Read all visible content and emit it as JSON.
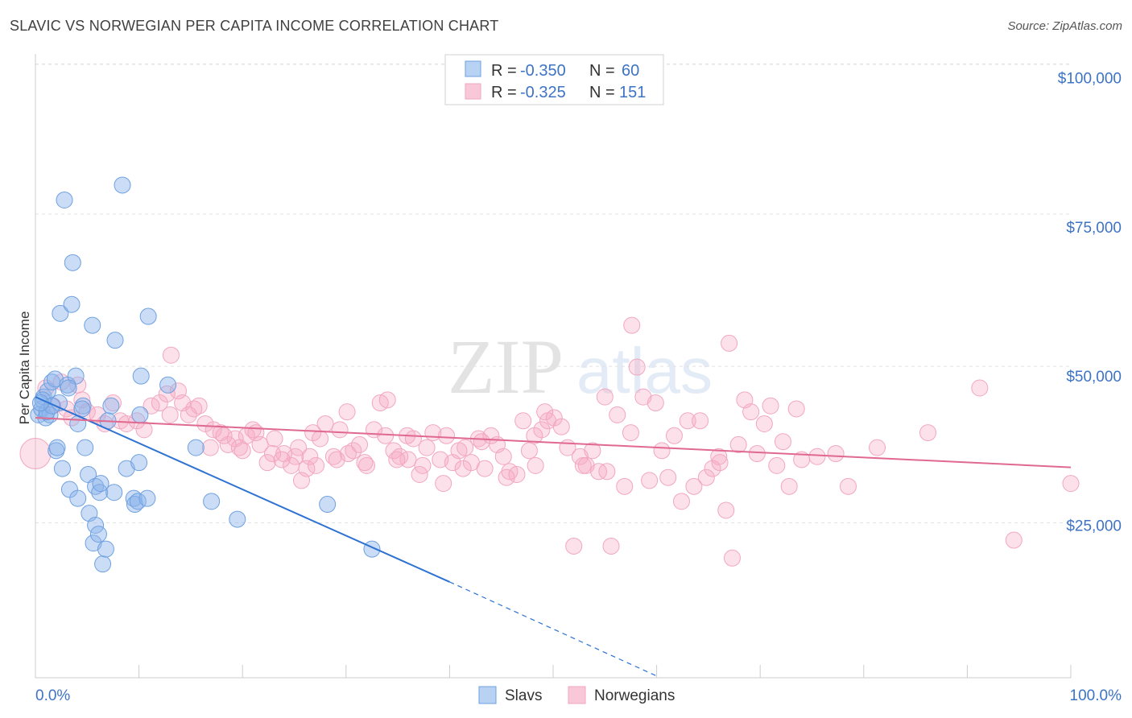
{
  "title": "SLAVIC VS NORWEGIAN PER CAPITA INCOME CORRELATION CHART",
  "source": "Source: ZipAtlas.com",
  "watermark": {
    "zip": "ZIP",
    "atlas": "atlas"
  },
  "chart_data": {
    "type": "scatter",
    "xlabel": "",
    "ylabel": "Per Capita Income",
    "xlim": [
      0,
      100
    ],
    "ylim": [
      0,
      105000
    ],
    "x_tick_labels": [
      "0.0%",
      "100.0%"
    ],
    "y_ticks": [
      25000,
      50000,
      75000,
      100000
    ],
    "y_tick_labels": [
      "$25,000",
      "$50,000",
      "$75,000",
      "$100,000"
    ],
    "grid": true,
    "legend_position": "top-center",
    "stats": [
      {
        "r_label": "R =",
        "r_value": "-0.350",
        "n_label": "N =",
        "n_value": "60"
      },
      {
        "r_label": "R =",
        "r_value": "-0.325",
        "n_label": "N =",
        "n_value": "151"
      }
    ],
    "series": [
      {
        "name": "Slavs",
        "color": "#6ea0e0",
        "line_color": "#2d72d2",
        "trend": {
          "x0": 0,
          "y0": 46500,
          "x1": 40,
          "y1": 15500,
          "x_dash_end": 60,
          "y_dash_end": 0
        },
        "points": [
          [
            0.3,
            43500
          ],
          [
            0.6,
            44500
          ],
          [
            0.8,
            46500
          ],
          [
            1,
            43000
          ],
          [
            1.2,
            47500
          ],
          [
            1.4,
            43500
          ],
          [
            1.6,
            49000
          ],
          [
            1.9,
            49500
          ],
          [
            2,
            37500
          ],
          [
            2.1,
            38000
          ],
          [
            2.4,
            60500
          ],
          [
            2.6,
            34500
          ],
          [
            2.8,
            79500
          ],
          [
            3.1,
            48500
          ],
          [
            3.3,
            31000
          ],
          [
            3.6,
            69000
          ],
          [
            3.5,
            62000
          ],
          [
            3.9,
            50000
          ],
          [
            4.1,
            42000
          ],
          [
            4.1,
            29500
          ],
          [
            4.6,
            45000
          ],
          [
            4.8,
            38000
          ],
          [
            5.1,
            33500
          ],
          [
            5.2,
            27000
          ],
          [
            5.5,
            58500
          ],
          [
            5.6,
            22000
          ],
          [
            5.8,
            31500
          ],
          [
            5.8,
            25000
          ],
          [
            6.1,
            23500
          ],
          [
            6.2,
            30500
          ],
          [
            6.3,
            32000
          ],
          [
            6.5,
            18500
          ],
          [
            6.8,
            21000
          ],
          [
            7,
            42500
          ],
          [
            7.3,
            45000
          ],
          [
            7.6,
            30500
          ],
          [
            7.7,
            56000
          ],
          [
            8.4,
            82000
          ],
          [
            8.8,
            34500
          ],
          [
            9.5,
            29500
          ],
          [
            9.6,
            28500
          ],
          [
            9.9,
            29000
          ],
          [
            10,
            35500
          ],
          [
            10.1,
            43500
          ],
          [
            10.2,
            50000
          ],
          [
            10.8,
            29500
          ],
          [
            10.9,
            60000
          ],
          [
            12.8,
            48500
          ],
          [
            15.5,
            38000
          ],
          [
            17,
            29000
          ],
          [
            19.5,
            26000
          ],
          [
            28.2,
            28500
          ],
          [
            32.5,
            21000
          ],
          [
            0.7,
            46000
          ],
          [
            1.1,
            44000
          ],
          [
            2.3,
            45500
          ],
          [
            3.2,
            48000
          ],
          [
            4.5,
            44500
          ],
          [
            1.6,
            45000
          ],
          [
            0.5,
            45500
          ]
        ]
      },
      {
        "name": "Norwegians",
        "color": "#f2a6c0",
        "line_color": "#e0698f",
        "trend": {
          "x0": 0,
          "y0": 43000,
          "x1": 100,
          "y1": 34700
        },
        "points": [
          [
            0,
            37000
          ],
          [
            1,
            48000
          ],
          [
            1.7,
            45000
          ],
          [
            2.5,
            49000
          ],
          [
            3,
            44500
          ],
          [
            3.5,
            43000
          ],
          [
            4.1,
            48500
          ],
          [
            4.5,
            46000
          ],
          [
            5,
            44000
          ],
          [
            6,
            43500
          ],
          [
            6.7,
            42000
          ],
          [
            7.5,
            45500
          ],
          [
            8.2,
            42500
          ],
          [
            8.8,
            42000
          ],
          [
            9.8,
            42500
          ],
          [
            10.5,
            41000
          ],
          [
            11.2,
            45000
          ],
          [
            12,
            45500
          ],
          [
            12.7,
            47000
          ],
          [
            13,
            43500
          ],
          [
            13.1,
            53500
          ],
          [
            13.8,
            47500
          ],
          [
            14.2,
            45500
          ],
          [
            14.8,
            43500
          ],
          [
            15.3,
            44500
          ],
          [
            15.8,
            45000
          ],
          [
            16.4,
            42000
          ],
          [
            17.2,
            41000
          ],
          [
            17.9,
            40500
          ],
          [
            18.6,
            38500
          ],
          [
            19.3,
            39500
          ],
          [
            20,
            37500
          ],
          [
            20.4,
            40000
          ],
          [
            21,
            41000
          ],
          [
            21.7,
            38500
          ],
          [
            22.4,
            35500
          ],
          [
            23.1,
            39500
          ],
          [
            24,
            37000
          ],
          [
            24.7,
            35000
          ],
          [
            25.1,
            36500
          ],
          [
            25.7,
            32500
          ],
          [
            26.2,
            34500
          ],
          [
            26.8,
            40500
          ],
          [
            27.5,
            39500
          ],
          [
            28,
            42000
          ],
          [
            28.8,
            36500
          ],
          [
            29.4,
            41000
          ],
          [
            30.1,
            44000
          ],
          [
            30.7,
            37500
          ],
          [
            31.3,
            38500
          ],
          [
            32,
            35000
          ],
          [
            32.7,
            41000
          ],
          [
            33.3,
            45500
          ],
          [
            34,
            46000
          ],
          [
            34.6,
            37500
          ],
          [
            35.2,
            36500
          ],
          [
            35.9,
            40000
          ],
          [
            36.5,
            39500
          ],
          [
            37.1,
            33500
          ],
          [
            37.8,
            38000
          ],
          [
            38.4,
            40500
          ],
          [
            39.1,
            36000
          ],
          [
            39.7,
            40000
          ],
          [
            40.3,
            35500
          ],
          [
            40.9,
            37500
          ],
          [
            41.5,
            38000
          ],
          [
            42.1,
            35500
          ],
          [
            42.8,
            39500
          ],
          [
            43.4,
            34500
          ],
          [
            44,
            40000
          ],
          [
            44.6,
            38500
          ],
          [
            45.2,
            36500
          ],
          [
            45.8,
            34000
          ],
          [
            46.5,
            33500
          ],
          [
            47.1,
            42500
          ],
          [
            47.7,
            37500
          ],
          [
            48.3,
            35000
          ],
          [
            48.9,
            41000
          ],
          [
            49.5,
            42500
          ],
          [
            50.1,
            43000
          ],
          [
            50.8,
            41500
          ],
          [
            51.4,
            38000
          ],
          [
            52,
            21500
          ],
          [
            52.6,
            36500
          ],
          [
            53.2,
            35000
          ],
          [
            53.8,
            37500
          ],
          [
            54.4,
            34000
          ],
          [
            55,
            46500
          ],
          [
            55.6,
            21500
          ],
          [
            56.2,
            43500
          ],
          [
            56.9,
            31500
          ],
          [
            57.5,
            40500
          ],
          [
            58.1,
            51500
          ],
          [
            58.7,
            46500
          ],
          [
            59.3,
            32500
          ],
          [
            59.9,
            45500
          ],
          [
            60.5,
            37500
          ],
          [
            61.1,
            33000
          ],
          [
            61.7,
            40000
          ],
          [
            62.4,
            29000
          ],
          [
            63,
            42500
          ],
          [
            63.6,
            31500
          ],
          [
            64.2,
            42500
          ],
          [
            64.8,
            33000
          ],
          [
            65.4,
            34500
          ],
          [
            66,
            36500
          ],
          [
            66.7,
            27500
          ],
          [
            67.3,
            19500
          ],
          [
            67.9,
            38500
          ],
          [
            68.5,
            46000
          ],
          [
            69.1,
            44000
          ],
          [
            69.7,
            37000
          ],
          [
            70.4,
            42000
          ],
          [
            71,
            45000
          ],
          [
            71.6,
            35000
          ],
          [
            72.2,
            39000
          ],
          [
            72.8,
            31500
          ],
          [
            73.5,
            44500
          ],
          [
            74,
            36000
          ],
          [
            77.3,
            37000
          ],
          [
            78.5,
            31500
          ],
          [
            86.2,
            40500
          ],
          [
            91.2,
            48000
          ],
          [
            94.5,
            22500
          ],
          [
            100,
            32000
          ],
          [
            75.5,
            36500
          ],
          [
            81.3,
            38000
          ],
          [
            57.6,
            58500
          ],
          [
            67,
            55500
          ],
          [
            66.1,
            35500
          ],
          [
            55.2,
            34000
          ],
          [
            52.9,
            35000
          ],
          [
            49.2,
            44000
          ],
          [
            48.2,
            40000
          ],
          [
            45.5,
            33000
          ],
          [
            43.1,
            39000
          ],
          [
            41.3,
            34500
          ],
          [
            39.4,
            32000
          ],
          [
            37.4,
            35000
          ],
          [
            36,
            36000
          ],
          [
            34.9,
            36000
          ],
          [
            33.8,
            40000
          ],
          [
            31.8,
            35500
          ],
          [
            30.2,
            37000
          ],
          [
            29.1,
            36000
          ],
          [
            27.1,
            35000
          ],
          [
            26.5,
            36500
          ],
          [
            25.4,
            38000
          ],
          [
            23.8,
            36000
          ],
          [
            22.9,
            37000
          ],
          [
            21.3,
            40500
          ],
          [
            19.7,
            38000
          ],
          [
            18.2,
            40000
          ],
          [
            16.9,
            38000
          ]
        ]
      }
    ]
  }
}
